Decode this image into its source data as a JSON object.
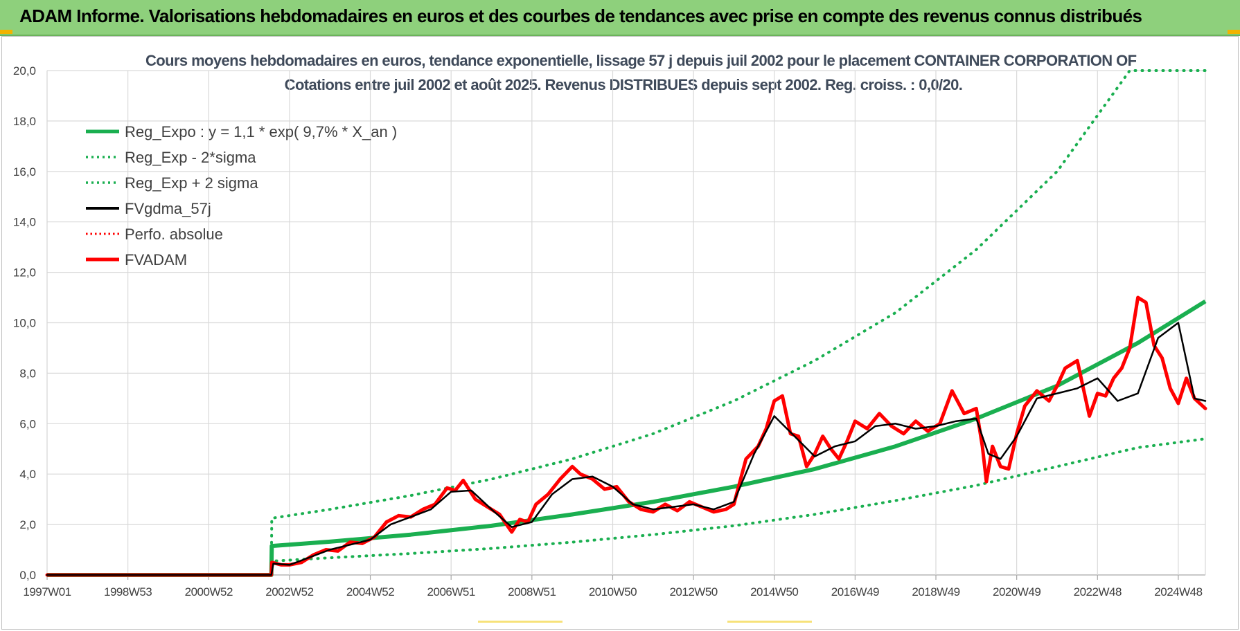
{
  "banner": {
    "title": "ADAM Informe. Valorisations hebdomadaires en euros et des courbes de tendances avec prise en compte des revenus connus distribués"
  },
  "colors": {
    "banner": "#8ed07c",
    "trend": "#1aaf50",
    "sigma": "#1aaf50",
    "gdma": "#000000",
    "perfo": "#ff0000",
    "fvadam": "#ff0000",
    "grid": "#d9d9d9"
  },
  "chart_data": {
    "type": "line",
    "title": "Cours moyens hebdomadaires en euros, tendance exponentielle, lissage 57 j depuis juil 2002 pour le placement CONTAINER CORPORATION OF",
    "subtitle": "Cotations entre juil 2002 et août 2025. Revenus DISTRIBUES depuis sept 2002. Reg. croiss. : 0,0/20.",
    "xlabel": "",
    "ylabel": "",
    "ylim": [
      0,
      20
    ],
    "xlim": [
      1997.0,
      2025.67
    ],
    "x_unit": "year",
    "y_ticks": [
      "0,0",
      "2,0",
      "4,0",
      "6,0",
      "8,0",
      "10,0",
      "12,0",
      "14,0",
      "16,0",
      "18,0",
      "20,0"
    ],
    "x_ticks": [
      {
        "label": "1997W01",
        "year": 1997.0
      },
      {
        "label": "1998W53",
        "year": 1999.0
      },
      {
        "label": "2000W52",
        "year": 2001.0
      },
      {
        "label": "2002W52",
        "year": 2003.0
      },
      {
        "label": "2004W52",
        "year": 2005.0
      },
      {
        "label": "2006W51",
        "year": 2007.0
      },
      {
        "label": "2008W51",
        "year": 2009.0
      },
      {
        "label": "2010W50",
        "year": 2011.0
      },
      {
        "label": "2012W50",
        "year": 2013.0
      },
      {
        "label": "2014W50",
        "year": 2015.0
      },
      {
        "label": "2016W49",
        "year": 2017.0
      },
      {
        "label": "2018W49",
        "year": 2019.0
      },
      {
        "label": "2020W49",
        "year": 2021.0
      },
      {
        "label": "2022W48",
        "year": 2023.0
      },
      {
        "label": "2024W48",
        "year": 2025.0
      }
    ],
    "grid": true,
    "legend_position": "top-left",
    "series": [
      {
        "name": "Reg_Expo : y = 1,1 * exp( 9,7% *  X_an )",
        "style": "solid-thick",
        "x": [
          1997.0,
          2002.55,
          2002.56,
          2004,
          2006,
          2008,
          2010,
          2012,
          2014,
          2016,
          2018,
          2020,
          2022,
          2024,
          2025.67
        ],
        "y": [
          0,
          0,
          1.15,
          1.32,
          1.6,
          1.95,
          2.4,
          2.9,
          3.5,
          4.2,
          5.1,
          6.2,
          7.5,
          9.2,
          10.85
        ]
      },
      {
        "name": "Reg_Exp - 2*sigma",
        "style": "dotted",
        "x": [
          1997.0,
          2002.55,
          2002.56,
          2004,
          2006,
          2008,
          2010,
          2012,
          2014,
          2016,
          2018,
          2020,
          2022,
          2024,
          2025.67
        ],
        "y": [
          0,
          0,
          0.55,
          0.68,
          0.85,
          1.05,
          1.3,
          1.6,
          1.95,
          2.4,
          2.95,
          3.55,
          4.3,
          5.05,
          5.4
        ]
      },
      {
        "name": "Reg_Exp + 2 sigma",
        "style": "dotted",
        "x": [
          1997.0,
          2002.55,
          2002.56,
          2004,
          2006,
          2008,
          2010,
          2012,
          2014,
          2016,
          2018,
          2020,
          2022,
          2023.8,
          2025.67
        ],
        "y": [
          0,
          0,
          2.25,
          2.6,
          3.15,
          3.8,
          4.6,
          5.6,
          6.9,
          8.5,
          10.4,
          12.9,
          16.0,
          20.0,
          20.0
        ]
      },
      {
        "name": "FVgdma_57j",
        "style": "solid",
        "x": [
          1997.0,
          2002.55,
          2002.6,
          2003.0,
          2003.5,
          2004.0,
          2004.5,
          2005.0,
          2005.5,
          2006.0,
          2006.5,
          2007.0,
          2007.5,
          2008.0,
          2008.5,
          2009.0,
          2009.5,
          2010.0,
          2010.5,
          2011.0,
          2011.5,
          2012.0,
          2012.5,
          2013.0,
          2013.5,
          2014.0,
          2014.5,
          2015.0,
          2015.5,
          2016.0,
          2016.5,
          2017.0,
          2017.5,
          2018.0,
          2018.5,
          2019.0,
          2019.5,
          2020.0,
          2020.3,
          2020.6,
          2021.0,
          2021.5,
          2022.0,
          2022.5,
          2023.0,
          2023.5,
          2024.0,
          2024.5,
          2025.0,
          2025.4,
          2025.67
        ],
        "y": [
          0,
          0,
          0.45,
          0.4,
          0.7,
          1.0,
          1.2,
          1.4,
          2.0,
          2.3,
          2.6,
          3.3,
          3.35,
          2.6,
          1.9,
          2.1,
          3.2,
          3.8,
          3.9,
          3.5,
          2.8,
          2.6,
          2.7,
          2.8,
          2.6,
          2.9,
          4.8,
          6.3,
          5.5,
          4.7,
          5.1,
          5.3,
          5.9,
          6.0,
          5.8,
          5.9,
          6.1,
          6.2,
          4.8,
          4.6,
          5.5,
          7.0,
          7.2,
          7.4,
          7.8,
          6.9,
          7.2,
          9.4,
          10.0,
          7.0,
          6.9
        ]
      },
      {
        "name": "Perfo. absolue",
        "style": "dotted",
        "x": [],
        "y": []
      },
      {
        "name": "FVADAM",
        "style": "solid-thick",
        "x": [
          1997.0,
          2002.55,
          2002.56,
          2002.8,
          2003.0,
          2003.3,
          2003.6,
          2003.9,
          2004.2,
          2004.5,
          2004.8,
          2005.1,
          2005.4,
          2005.7,
          2006.0,
          2006.3,
          2006.6,
          2006.9,
          2007.1,
          2007.3,
          2007.6,
          2007.9,
          2008.2,
          2008.5,
          2008.7,
          2008.9,
          2009.1,
          2009.4,
          2009.7,
          2010.0,
          2010.2,
          2010.5,
          2010.8,
          2011.1,
          2011.4,
          2011.7,
          2012.0,
          2012.3,
          2012.6,
          2012.9,
          2013.2,
          2013.5,
          2013.8,
          2014.0,
          2014.3,
          2014.6,
          2014.8,
          2015.0,
          2015.2,
          2015.4,
          2015.6,
          2015.8,
          2016.0,
          2016.2,
          2016.4,
          2016.6,
          2016.8,
          2017.0,
          2017.3,
          2017.6,
          2017.9,
          2018.2,
          2018.5,
          2018.8,
          2019.1,
          2019.4,
          2019.7,
          2020.0,
          2020.15,
          2020.25,
          2020.4,
          2020.6,
          2020.8,
          2021.0,
          2021.2,
          2021.5,
          2021.8,
          2022.0,
          2022.2,
          2022.5,
          2022.8,
          2023.0,
          2023.2,
          2023.4,
          2023.6,
          2023.8,
          2024.0,
          2024.2,
          2024.4,
          2024.6,
          2024.8,
          2025.0,
          2025.2,
          2025.4,
          2025.67
        ],
        "y": [
          0,
          0,
          0.5,
          0.4,
          0.4,
          0.5,
          0.8,
          1.0,
          0.95,
          1.3,
          1.25,
          1.5,
          2.1,
          2.35,
          2.3,
          2.6,
          2.8,
          3.45,
          3.35,
          3.75,
          3.0,
          2.7,
          2.4,
          1.7,
          2.2,
          2.1,
          2.8,
          3.2,
          3.8,
          4.3,
          4.0,
          3.8,
          3.4,
          3.5,
          2.9,
          2.6,
          2.5,
          2.8,
          2.55,
          2.9,
          2.7,
          2.5,
          2.6,
          2.8,
          4.6,
          5.1,
          5.8,
          6.9,
          7.1,
          5.6,
          5.5,
          4.3,
          4.8,
          5.5,
          5.0,
          4.6,
          5.3,
          6.1,
          5.8,
          6.4,
          5.9,
          5.6,
          6.1,
          5.7,
          6.0,
          7.3,
          6.4,
          6.6,
          5.1,
          3.7,
          5.1,
          4.3,
          4.2,
          5.6,
          6.7,
          7.3,
          6.9,
          7.5,
          8.2,
          8.5,
          6.3,
          7.2,
          7.1,
          7.8,
          8.2,
          9.0,
          11.0,
          10.8,
          9.1,
          8.6,
          7.4,
          6.8,
          7.8,
          7.0,
          6.6
        ]
      }
    ]
  },
  "legend": [
    {
      "label": "Reg_Expo : y = 1,1 * exp( 9,7% *  X_an )",
      "color": "#1aaf50",
      "style": "solid-thick"
    },
    {
      "label": "Reg_Exp - 2*sigma",
      "color": "#1aaf50",
      "style": "dotted"
    },
    {
      "label": "Reg_Exp + 2 sigma",
      "color": "#1aaf50",
      "style": "dotted"
    },
    {
      "label": "FVgdma_57j",
      "color": "#000000",
      "style": "solid"
    },
    {
      "label": "Perfo. absolue",
      "color": "#ff0000",
      "style": "dotted"
    },
    {
      "label": "FVADAM",
      "color": "#ff0000",
      "style": "solid-thick"
    }
  ]
}
